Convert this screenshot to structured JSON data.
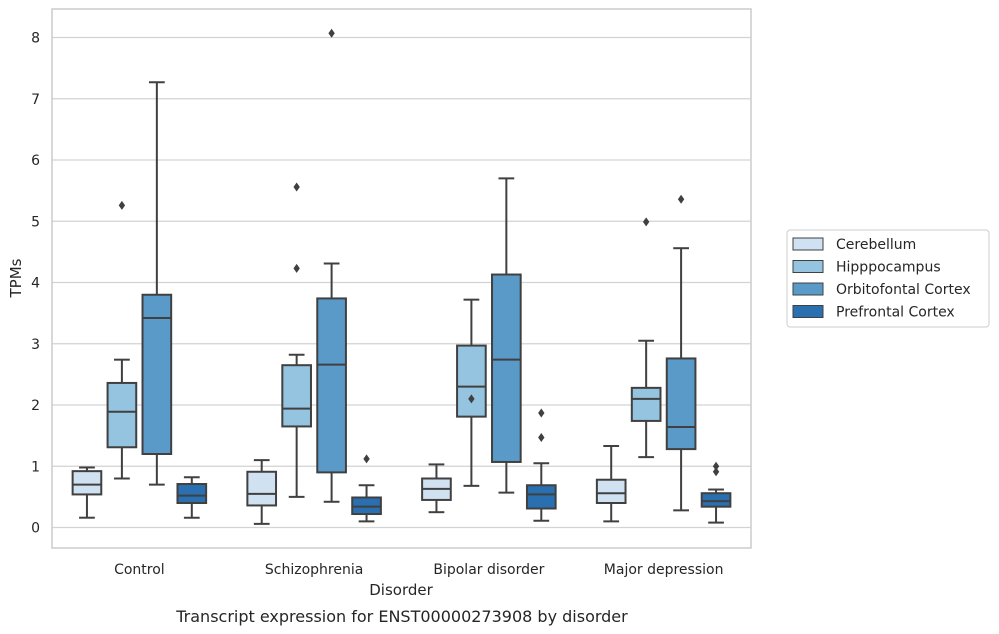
{
  "chart_data": {
    "type": "box",
    "caption": "Transcript expression for ENST00000273908 by disorder",
    "xlabel": "Disorder",
    "ylabel": "TPMs",
    "ylim": [
      -0.32,
      8.5
    ],
    "yticks": [
      0,
      1,
      2,
      3,
      4,
      5,
      6,
      7,
      8
    ],
    "grid": true,
    "legend_position": "right",
    "categories": [
      "Control",
      "Schizophrenia",
      "Bipolar disorder",
      "Major depression"
    ],
    "series": [
      {
        "name": "Cerebellum",
        "color": "#d0e1f2",
        "boxes": [
          {
            "whislo": 0.16,
            "q1": 0.54,
            "med": 0.7,
            "q3": 0.92,
            "whishi": 0.98,
            "fliers": []
          },
          {
            "whislo": 0.06,
            "q1": 0.36,
            "med": 0.55,
            "q3": 0.91,
            "whishi": 1.1,
            "fliers": []
          },
          {
            "whislo": 0.25,
            "q1": 0.45,
            "med": 0.63,
            "q3": 0.8,
            "whishi": 1.03,
            "fliers": []
          },
          {
            "whislo": 0.1,
            "q1": 0.4,
            "med": 0.56,
            "q3": 0.78,
            "whishi": 1.33,
            "fliers": []
          }
        ]
      },
      {
        "name": "Hipppocampus",
        "color": "#94c4df",
        "boxes": [
          {
            "whislo": 0.8,
            "q1": 1.31,
            "med": 1.89,
            "q3": 2.36,
            "whishi": 2.74,
            "fliers": [
              5.26
            ]
          },
          {
            "whislo": 0.5,
            "q1": 1.65,
            "med": 1.94,
            "q3": 2.65,
            "whishi": 2.82,
            "fliers": [
              4.23,
              5.56
            ]
          },
          {
            "whislo": 0.68,
            "q1": 1.81,
            "med": 2.3,
            "q3": 2.97,
            "whishi": 3.72,
            "fliers": [
              2.1
            ]
          },
          {
            "whislo": 1.15,
            "q1": 1.74,
            "med": 2.1,
            "q3": 2.28,
            "whishi": 3.05,
            "fliers": [
              4.99
            ]
          }
        ]
      },
      {
        "name": "Orbitofontal Cortex",
        "color": "#5a9ac9",
        "boxes": [
          {
            "whislo": 0.7,
            "q1": 1.2,
            "med": 3.42,
            "q3": 3.8,
            "whishi": 7.27,
            "fliers": []
          },
          {
            "whislo": 0.42,
            "q1": 0.9,
            "med": 2.66,
            "q3": 3.74,
            "whishi": 4.31,
            "fliers": [
              8.07
            ]
          },
          {
            "whislo": 0.57,
            "q1": 1.07,
            "med": 2.74,
            "q3": 4.13,
            "whishi": 5.7,
            "fliers": []
          },
          {
            "whislo": 0.28,
            "q1": 1.28,
            "med": 1.64,
            "q3": 2.76,
            "whishi": 4.56,
            "fliers": [
              5.36
            ]
          }
        ]
      },
      {
        "name": "Prefrontal Cortex",
        "color": "#2a6fb0",
        "boxes": [
          {
            "whislo": 0.16,
            "q1": 0.4,
            "med": 0.52,
            "q3": 0.71,
            "whishi": 0.82,
            "fliers": []
          },
          {
            "whislo": 0.1,
            "q1": 0.22,
            "med": 0.34,
            "q3": 0.49,
            "whishi": 0.69,
            "fliers": [
              1.12
            ]
          },
          {
            "whislo": 0.11,
            "q1": 0.31,
            "med": 0.54,
            "q3": 0.69,
            "whishi": 1.05,
            "fliers": [
              1.47,
              1.87
            ]
          },
          {
            "whislo": 0.08,
            "q1": 0.34,
            "med": 0.43,
            "q3": 0.56,
            "whishi": 0.62,
            "fliers": [
              0.91,
              1.0
            ]
          }
        ]
      }
    ]
  }
}
